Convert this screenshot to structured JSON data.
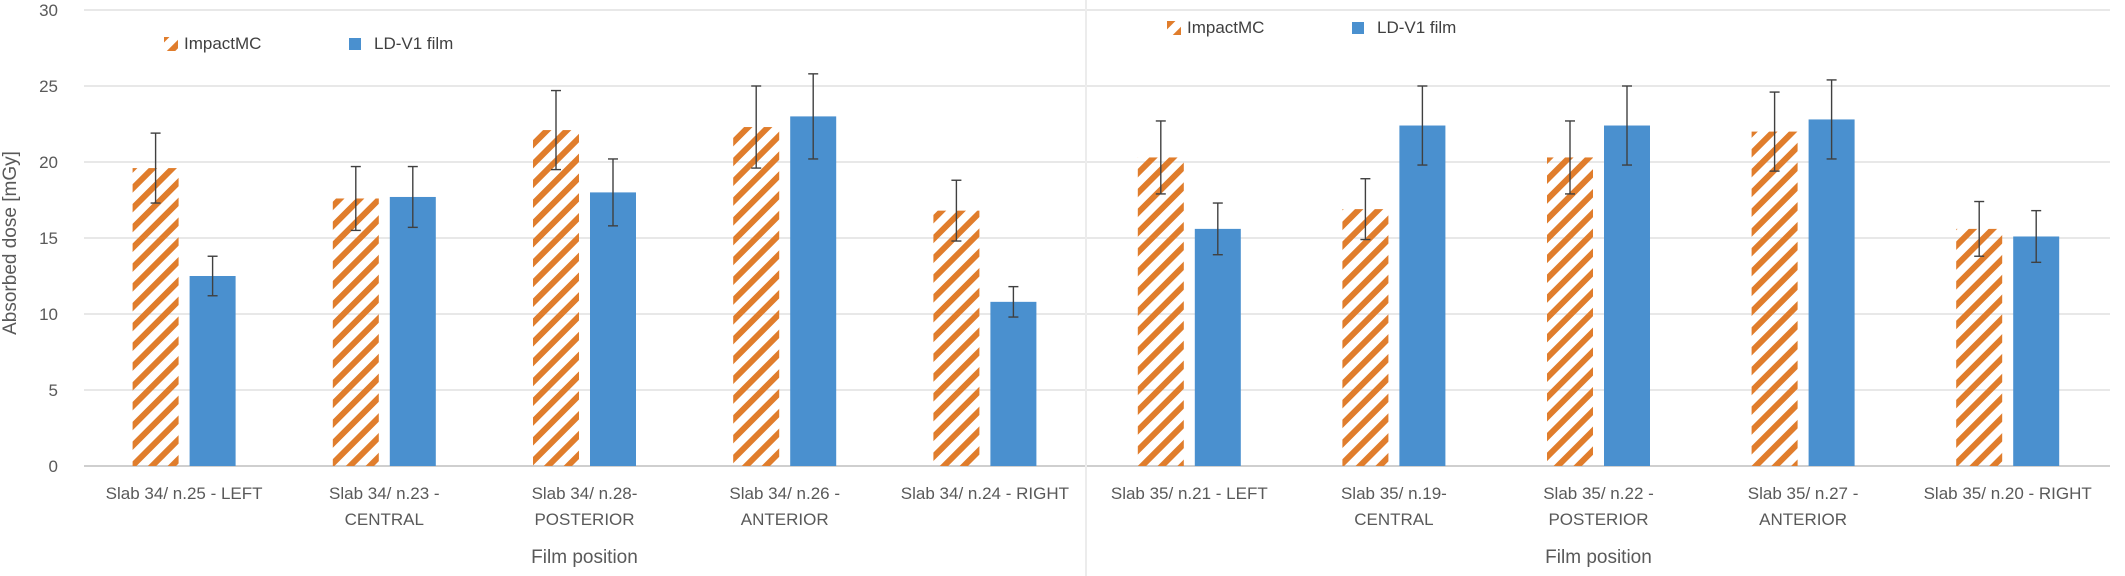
{
  "colors": {
    "impact": "#E07D2C",
    "film": "#4A90CF",
    "grid": "#D9D9D9",
    "axis": "#BFBFBF",
    "error_bar": "#404040",
    "text": "#595959"
  },
  "chart_data": [
    {
      "type": "bar",
      "ylabel": "Absorbed dose [mGy]",
      "xlabel": "Film position",
      "ylim": [
        0,
        30
      ],
      "yticks": [
        0,
        5,
        10,
        15,
        20,
        25,
        30
      ],
      "grid": true,
      "legend_position": "top-left",
      "categories": [
        [
          "Slab 34/ n.25 - LEFT"
        ],
        [
          "Slab 34/ n.23 -",
          "CENTRAL"
        ],
        [
          "Slab 34/ n.28-",
          "POSTERIOR"
        ],
        [
          "Slab 34/ n.26 -",
          "ANTERIOR"
        ],
        [
          "Slab 34/ n.24 - RIGHT"
        ]
      ],
      "series": [
        {
          "name": "ImpactMC",
          "pattern": "diagonal-hatch",
          "values": [
            19.6,
            17.6,
            22.1,
            22.3,
            16.8
          ],
          "errors": [
            2.3,
            2.1,
            2.6,
            2.7,
            2.0
          ]
        },
        {
          "name": "LD-V1 film",
          "pattern": "solid",
          "values": [
            12.5,
            17.7,
            18.0,
            23.0,
            10.8
          ],
          "errors": [
            1.3,
            2.0,
            2.2,
            2.8,
            1.0
          ]
        }
      ]
    },
    {
      "type": "bar",
      "xlabel": "Film position",
      "ylim": [
        0,
        30
      ],
      "yticks": [
        0,
        5,
        10,
        15,
        20,
        25,
        30
      ],
      "grid": true,
      "legend_position": "top-left",
      "categories": [
        [
          "Slab 35/ n.21 - LEFT"
        ],
        [
          "Slab 35/ n.19-",
          "CENTRAL"
        ],
        [
          "Slab 35/ n.22 -",
          "POSTERIOR"
        ],
        [
          "Slab 35/ n.27 -",
          "ANTERIOR"
        ],
        [
          "Slab 35/ n.20 - RIGHT"
        ]
      ],
      "series": [
        {
          "name": "ImpactMC",
          "pattern": "diagonal-hatch",
          "values": [
            20.3,
            16.9,
            20.3,
            22.0,
            15.6
          ],
          "errors": [
            2.4,
            2.0,
            2.4,
            2.6,
            1.8
          ]
        },
        {
          "name": "LD-V1 film",
          "pattern": "solid",
          "values": [
            15.6,
            22.4,
            22.4,
            22.8,
            15.1
          ],
          "errors": [
            1.7,
            2.6,
            2.6,
            2.6,
            1.7
          ]
        }
      ]
    }
  ]
}
